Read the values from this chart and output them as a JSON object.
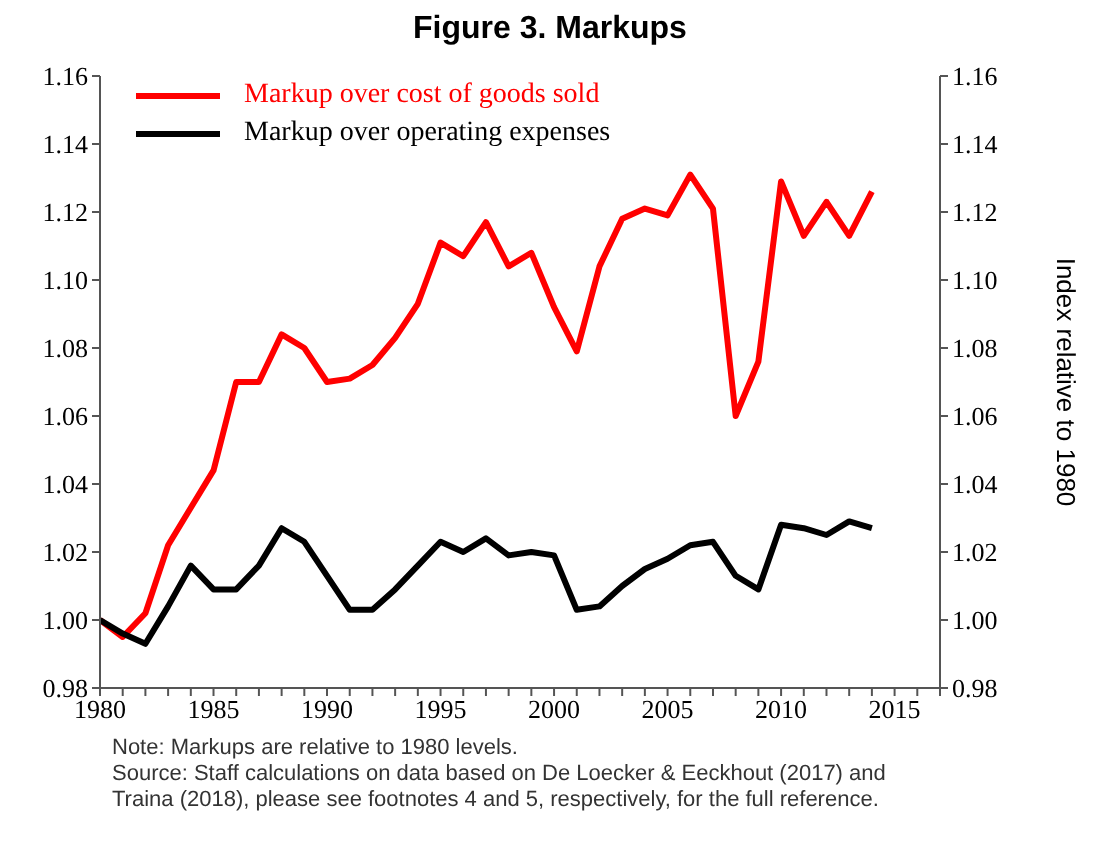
{
  "chart_data": {
    "type": "line",
    "title": "Figure 3. Markups",
    "y2label": "Index relative to 1980",
    "annotations": [
      "Note: Markups are relative to 1980 levels.",
      "Source: Staff calculations on data based on De Loecker & Eeckhout (2017) and Traina (2018), please see footnotes 4 and 5, respectively, for the full reference."
    ],
    "x": [
      1980,
      1981,
      1982,
      1983,
      1984,
      1985,
      1986,
      1987,
      1988,
      1989,
      1990,
      1991,
      1992,
      1993,
      1994,
      1995,
      1996,
      1997,
      1998,
      1999,
      2000,
      2001,
      2002,
      2003,
      2004,
      2005,
      2006,
      2007,
      2008,
      2009,
      2010,
      2011,
      2012,
      2013,
      2014
    ],
    "series": [
      {
        "name": "Markup over cost of goods sold",
        "color": "#ff0000",
        "values": [
          1.0,
          0.995,
          1.002,
          1.022,
          1.033,
          1.044,
          1.07,
          1.07,
          1.084,
          1.08,
          1.07,
          1.071,
          1.075,
          1.083,
          1.093,
          1.111,
          1.107,
          1.117,
          1.104,
          1.108,
          1.092,
          1.079,
          1.104,
          1.118,
          1.121,
          1.119,
          1.131,
          1.121,
          1.06,
          1.076,
          1.129,
          1.113,
          1.123,
          1.113,
          1.126
        ]
      },
      {
        "name": "Markup over operating expenses",
        "color": "#000000",
        "values": [
          1.0,
          0.996,
          0.993,
          1.004,
          1.016,
          1.009,
          1.009,
          1.016,
          1.027,
          1.023,
          1.013,
          1.003,
          1.003,
          1.009,
          1.016,
          1.023,
          1.02,
          1.024,
          1.019,
          1.02,
          1.019,
          1.003,
          1.004,
          1.01,
          1.015,
          1.018,
          1.022,
          1.023,
          1.013,
          1.009,
          1.028,
          1.027,
          1.025,
          1.029,
          1.027
        ]
      }
    ],
    "xlim": [
      1980,
      2017
    ],
    "xticks": [
      1980,
      {
        "value": 1981,
        "label": null
      },
      {
        "value": 1982,
        "label": null
      },
      {
        "value": 1983,
        "label": null
      },
      {
        "value": 1984,
        "label": null
      },
      1985,
      {
        "value": 1986,
        "label": null
      },
      {
        "value": 1987,
        "label": null
      },
      {
        "value": 1988,
        "label": null
      },
      {
        "value": 1989,
        "label": null
      },
      1990,
      {
        "value": 1991,
        "label": null
      },
      {
        "value": 1992,
        "label": null
      },
      {
        "value": 1993,
        "label": null
      },
      {
        "value": 1994,
        "label": null
      },
      1995,
      {
        "value": 1996,
        "label": null
      },
      {
        "value": 1997,
        "label": null
      },
      {
        "value": 1998,
        "label": null
      },
      {
        "value": 1999,
        "label": null
      },
      2000,
      {
        "value": 2001,
        "label": null
      },
      {
        "value": 2002,
        "label": null
      },
      {
        "value": 2003,
        "label": null
      },
      {
        "value": 2004,
        "label": null
      },
      2005,
      {
        "value": 2006,
        "label": null
      },
      {
        "value": 2007,
        "label": null
      },
      {
        "value": 2008,
        "label": null
      },
      {
        "value": 2009,
        "label": null
      },
      2010,
      {
        "value": 2011,
        "label": null
      },
      {
        "value": 2012,
        "label": null
      },
      {
        "value": 2013,
        "label": null
      },
      {
        "value": 2014,
        "label": null
      },
      2015,
      {
        "value": 2016,
        "label": null
      },
      {
        "value": 2017,
        "label": null
      }
    ],
    "ylim": [
      0.98,
      1.16
    ],
    "yticks": [
      0.98,
      {
        "value": 1,
        "label": "1.00"
      },
      1.02,
      1.04,
      1.06,
      1.08,
      {
        "value": 1.1,
        "label": "1.10"
      },
      1.12,
      1.14,
      1.16
    ],
    "y2lim": [
      0.98,
      1.16
    ],
    "y2ticks": [
      0.98,
      {
        "value": 1,
        "label": "1.00"
      },
      1.02,
      1.04,
      1.06,
      1.08,
      {
        "value": 1.1,
        "label": "1.10"
      },
      1.12,
      1.14,
      1.16
    ],
    "legend": "top left",
    "grid": false,
    "marker": "none",
    "line_style": "solid"
  }
}
